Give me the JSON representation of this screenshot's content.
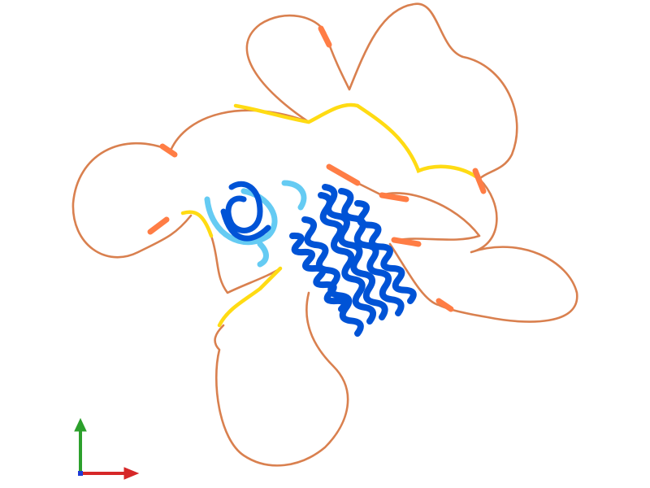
{
  "viewer": {
    "colors": {
      "very_high_confidence": "#0053d6",
      "confident": "#65cbf3",
      "low_confidence": "#ffdb13",
      "very_low_confidence": "#ff7d45",
      "coil": "#d9804f",
      "axis_x": "#d62728",
      "axis_y": "#2ca02c",
      "axis_z": "#1f3bd6"
    },
    "axes_icon": "xyz-axes-icon"
  }
}
